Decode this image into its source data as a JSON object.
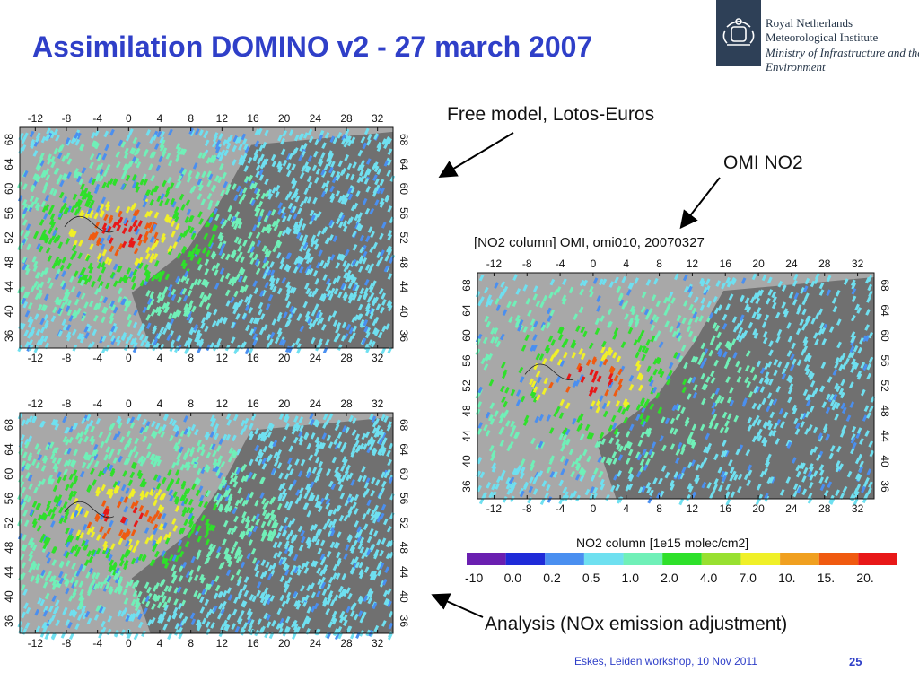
{
  "slide": {
    "title": "Assimilation DOMINO v2 - 27 march 2007"
  },
  "logo": {
    "lines": [
      "Royal Netherlands",
      "Meteorological Institute",
      "Ministry of Infrastructure and the",
      "Environment"
    ]
  },
  "captions": {
    "free_model": "Free model, Lotos-Euros",
    "omi": "OMI NO2",
    "analysis": "Analysis (NOx emission adjustment)"
  },
  "omi_map": {
    "title": "[NO2 column] OMI, omi010, 20070327",
    "colorbar_label": "NO2 column [1e15 molec/cm2]"
  },
  "axes": {
    "lon_ticks": [
      "-12",
      "-8",
      "-4",
      "0",
      "4",
      "8",
      "12",
      "16",
      "20",
      "24",
      "28",
      "32"
    ],
    "lat_ticks": [
      "68",
      "64",
      "60",
      "56",
      "52",
      "48",
      "44",
      "40",
      "36"
    ]
  },
  "colorbar": {
    "labels": [
      "-10",
      "0.0",
      "0.2",
      "0.5",
      "1.0",
      "2.0",
      "4.0",
      "7.0",
      "10.",
      "15.",
      "20."
    ],
    "colors": [
      "#6a1fb0",
      "#1f2bd8",
      "#4a8ff0",
      "#6fe0f0",
      "#70f0b8",
      "#2ee02a",
      "#98e030",
      "#f0f028",
      "#f0a020",
      "#f05a10",
      "#e81818"
    ]
  },
  "footer": {
    "text": "Eskes, Leiden workshop, 10 Nov 2011",
    "page": "25"
  }
}
